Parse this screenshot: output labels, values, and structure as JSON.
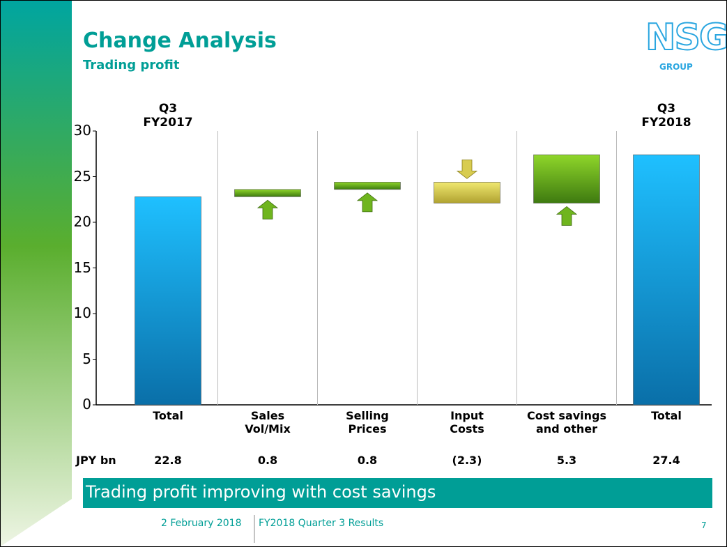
{
  "title": "Change Analysis",
  "subtitle": "Trading profit",
  "logo": {
    "text": "NSG",
    "sub": "GROUP"
  },
  "chart_data": {
    "type": "waterfall",
    "categories": [
      "Total",
      "Sales\nVol/Mix",
      "Selling\nPrices",
      "Input\nCosts",
      "Cost savings\nand other",
      "Total"
    ],
    "measures": [
      "total",
      "relative",
      "relative",
      "relative",
      "relative",
      "total"
    ],
    "values": [
      22.8,
      0.8,
      0.8,
      -2.3,
      5.3,
      27.4
    ],
    "value_labels": [
      "22.8",
      "0.8",
      "0.8",
      "(2.3)",
      "5.3",
      "27.4"
    ],
    "unit_label": "JPY bn",
    "period_labels": [
      "Q3\nFY2017",
      "Q3\nFY2018"
    ],
    "colors": {
      "total": "#17aef0",
      "increase": "#6fb51e",
      "decrease": "#d8cc50"
    },
    "ylim": [
      0,
      30
    ],
    "yticks": [
      0,
      5,
      10,
      15,
      20,
      25,
      30
    ]
  },
  "banner": "Trading profit improving with cost savings",
  "footer": {
    "date": "2 February 2018",
    "event": "FY2018 Quarter 3 Results",
    "page": "7"
  }
}
